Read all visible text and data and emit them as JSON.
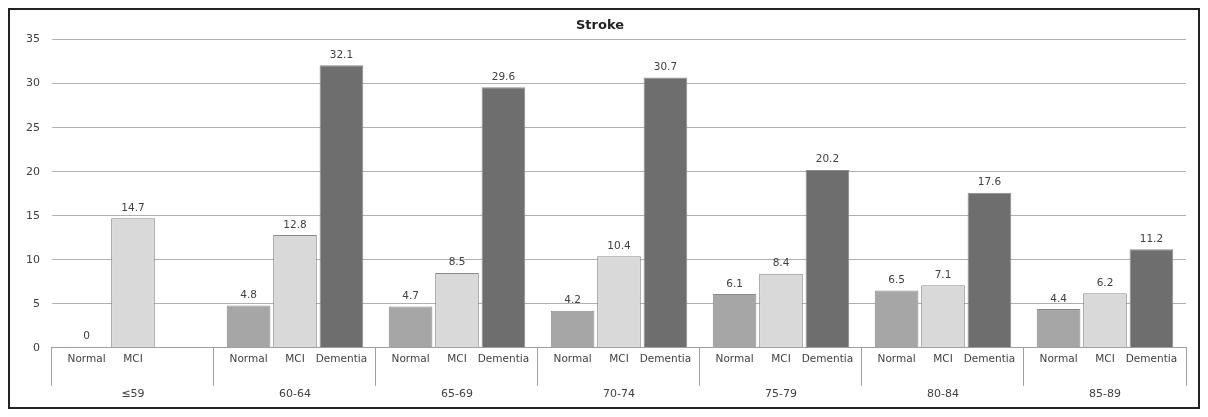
{
  "chart_data": {
    "type": "bar",
    "title": "Stroke",
    "categories": [
      "≤59",
      "60-64",
      "65-69",
      "70-74",
      "75-79",
      "80-84",
      "85-89"
    ],
    "series": [
      {
        "name": "Normal",
        "color": "#a6a6a6",
        "values": [
          0,
          4.8,
          4.7,
          4.2,
          6.1,
          6.5,
          4.4
        ]
      },
      {
        "name": "MCI",
        "color": "#d9d9d9",
        "values": [
          14.7,
          12.8,
          8.5,
          10.4,
          8.4,
          7.1,
          6.2
        ]
      },
      {
        "name": "Dementia",
        "color": "#6e6e6e",
        "values": [
          null,
          32.1,
          29.6,
          30.7,
          20.2,
          17.6,
          11.2
        ]
      }
    ],
    "ylim": [
      0,
      35
    ],
    "yticks": [
      0,
      5,
      10,
      15,
      20,
      25,
      30,
      35
    ],
    "grid": "y",
    "legend": false,
    "data_labels": true
  }
}
